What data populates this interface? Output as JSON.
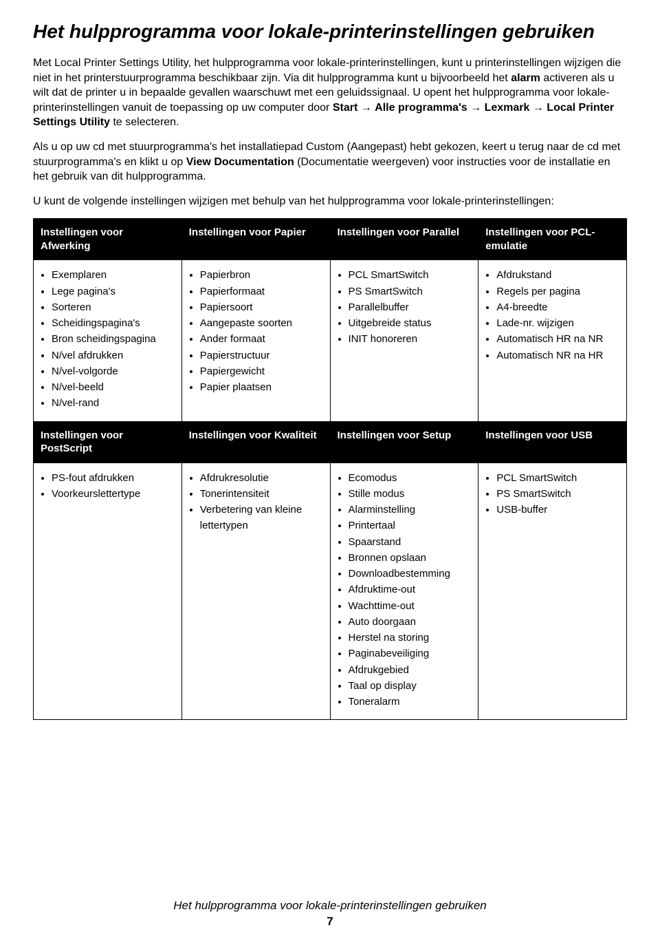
{
  "title": "Het hulpprogramma voor lokale-printerinstellingen gebruiken",
  "para1_pre": "Met Local Printer Settings Utility, het hulpprogramma voor lokale-printerinstellingen, kunt u printerinstellingen wijzigen die niet in het printerstuurprogramma beschikbaar zijn. Via dit hulpprogramma kunt u bijvoorbeeld het ",
  "para1_bold1": "alarm",
  "para1_mid1": " activeren als u wilt dat de printer u in bepaalde gevallen waarschuwt met een geluidssignaal. U opent het hulpprogramma voor lokale-printerinstellingen vanuit de toepassing op uw computer door ",
  "para1_bold2": "Start",
  "arrow": " → ",
  "para1_bold3": "Alle programma's",
  "para1_bold4": "Lexmark",
  "para1_bold5": "Local Printer Settings Utility",
  "para1_tail": " te selecteren.",
  "para2_pre": "Als u op uw cd met stuurprogramma's het installatiepad Custom (Aangepast) hebt gekozen, keert u terug naar de cd met stuurprogramma's en klikt u op ",
  "para2_bold": "View Documentation",
  "para2_post": " (Documentatie weergeven) voor instructies voor de installatie en het gebruik van dit hulpprogramma.",
  "para3": "U kunt de volgende instellingen wijzigen met behulp van het hulpprogramma voor lokale-printerinstellingen:",
  "headers1": [
    "Instellingen voor Afwerking",
    "Instellingen voor Papier",
    "Instellingen voor Parallel",
    "Instellingen voor PCL-emulatie"
  ],
  "col1a": [
    "Exemplaren",
    "Lege pagina's",
    "Sorteren",
    "Scheidingspagina's",
    "Bron scheidingspagina",
    "N/vel afdrukken",
    "N/vel-volgorde",
    "N/vel-beeld",
    "N/vel-rand"
  ],
  "col2a": [
    "Papierbron",
    "Papierformaat",
    "Papiersoort",
    "Aangepaste soorten",
    "Ander formaat",
    "Papierstructuur",
    "Papiergewicht",
    "Papier plaatsen"
  ],
  "col3a": [
    "PCL SmartSwitch",
    "PS SmartSwitch",
    "Parallelbuffer",
    "Uitgebreide status",
    "INIT honoreren"
  ],
  "col4a": [
    "Afdrukstand",
    "Regels per pagina",
    "A4-breedte",
    "Lade-nr. wijzigen",
    "Automatisch HR na NR",
    "Automatisch NR na HR"
  ],
  "headers2": [
    "Instellingen voor PostScript",
    "Instellingen voor Kwaliteit",
    "Instellingen voor Setup",
    "Instellingen voor USB"
  ],
  "col1b": [
    "PS-fout afdrukken",
    "Voorkeurslettertype"
  ],
  "col2b": [
    "Afdrukresolutie",
    "Tonerintensiteit",
    "Verbetering van kleine lettertypen"
  ],
  "col3b": [
    "Ecomodus",
    "Stille modus",
    "Alarminstelling",
    "Printertaal",
    "Spaarstand",
    "Bronnen opslaan",
    "Downloadbestemming",
    "Afdruktime-out",
    "Wachttime-out",
    "Auto doorgaan",
    "Herstel na storing",
    "Paginabeveiliging",
    "Afdrukgebied",
    "Taal op display",
    "Toneralarm"
  ],
  "col4b": [
    "PCL SmartSwitch",
    "PS SmartSwitch",
    "USB-buffer"
  ],
  "footer_title": "Het hulpprogramma voor lokale-printerinstellingen gebruiken",
  "footer_page": "7"
}
